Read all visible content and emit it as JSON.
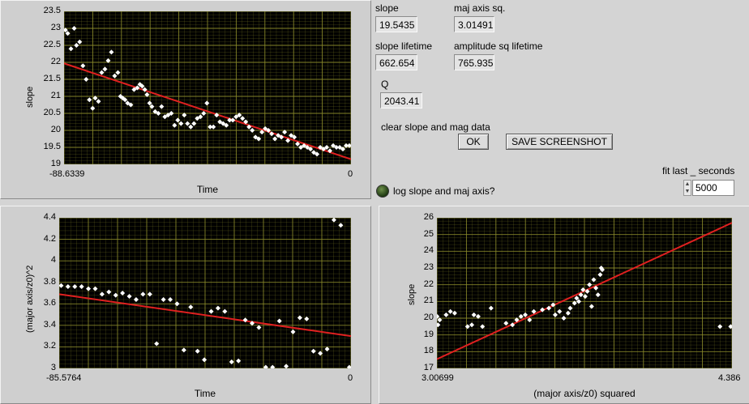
{
  "indicators": {
    "slope_label": "slope",
    "slope_value": "19.5435",
    "maj_axis_label": "maj axis sq.",
    "maj_axis_value": "3.01491",
    "slope_lifetime_label": "slope lifetime",
    "slope_lifetime_value": "662.654",
    "amp_lifetime_label": "amplitude sq lifetime",
    "amp_lifetime_value": "765.935",
    "q_label": "Q",
    "q_value": "2043.41"
  },
  "controls": {
    "clear_label": "clear slope and mag data",
    "ok_label": "OK",
    "save_label": "SAVE SCREENSHOT",
    "log_label": "log slope and maj axis?",
    "fit_label": "fit last _ seconds",
    "fit_value": "5000"
  },
  "colors": {
    "plot_bg": "#000000",
    "grid": "#8a8a2a",
    "point": "#ffffff",
    "fit_line": "#e02020"
  },
  "chart_data": [
    {
      "type": "scatter",
      "title": "",
      "xlabel": "Time",
      "ylabel": "slope",
      "xlim": [
        -88.6339,
        0
      ],
      "ylim": [
        19,
        23.5
      ],
      "x_tick_labels": [
        "-88.6339",
        "0"
      ],
      "y_tick_labels": [
        "23.5",
        "23",
        "22.5",
        "22",
        "21.5",
        "21",
        "20.5",
        "20",
        "19.5",
        "19"
      ],
      "points": [
        [
          -88.2,
          22.95
        ],
        [
          -87.5,
          22.85
        ],
        [
          -86.5,
          22.4
        ],
        [
          -85.5,
          23.0
        ],
        [
          -84.8,
          22.5
        ],
        [
          -83.8,
          22.6
        ],
        [
          -82.8,
          21.9
        ],
        [
          -81.8,
          21.5
        ],
        [
          -80.8,
          20.9
        ],
        [
          -79.8,
          20.65
        ],
        [
          -79.0,
          20.95
        ],
        [
          -78.0,
          20.85
        ],
        [
          -77.0,
          21.7
        ],
        [
          -76.0,
          21.8
        ],
        [
          -75.0,
          22.05
        ],
        [
          -74.0,
          22.3
        ],
        [
          -73.0,
          21.6
        ],
        [
          -72.0,
          21.7
        ],
        [
          -71.2,
          21.0
        ],
        [
          -70.5,
          20.95
        ],
        [
          -69.8,
          20.9
        ],
        [
          -69.0,
          20.8
        ],
        [
          -68.0,
          20.75
        ],
        [
          -67.0,
          21.2
        ],
        [
          -66.0,
          21.25
        ],
        [
          -65.2,
          21.35
        ],
        [
          -64.5,
          21.3
        ],
        [
          -63.7,
          21.2
        ],
        [
          -63.0,
          21.05
        ],
        [
          -62.2,
          20.8
        ],
        [
          -61.5,
          20.7
        ],
        [
          -60.5,
          20.55
        ],
        [
          -59.5,
          20.5
        ],
        [
          -58.5,
          20.7
        ],
        [
          -57.5,
          20.4
        ],
        [
          -56.5,
          20.45
        ],
        [
          -55.5,
          20.5
        ],
        [
          -54.5,
          20.15
        ],
        [
          -53.5,
          20.3
        ],
        [
          -52.5,
          20.2
        ],
        [
          -51.5,
          20.45
        ],
        [
          -50.5,
          20.2
        ],
        [
          -49.5,
          20.1
        ],
        [
          -48.5,
          20.2
        ],
        [
          -47.5,
          20.35
        ],
        [
          -46.5,
          20.4
        ],
        [
          -45.5,
          20.5
        ],
        [
          -44.5,
          20.8
        ],
        [
          -43.5,
          20.1
        ],
        [
          -42.5,
          20.1
        ],
        [
          -41.5,
          20.45
        ],
        [
          -40.5,
          20.25
        ],
        [
          -39.5,
          20.2
        ],
        [
          -38.5,
          20.15
        ],
        [
          -37.5,
          20.3
        ],
        [
          -36.5,
          20.3
        ],
        [
          -35.5,
          20.4
        ],
        [
          -34.5,
          20.45
        ],
        [
          -33.5,
          20.35
        ],
        [
          -32.5,
          20.25
        ],
        [
          -31.5,
          20.1
        ],
        [
          -30.5,
          20.0
        ],
        [
          -29.5,
          19.8
        ],
        [
          -28.5,
          19.75
        ],
        [
          -27.5,
          19.95
        ],
        [
          -26.5,
          20.05
        ],
        [
          -25.5,
          20.0
        ],
        [
          -24.5,
          19.9
        ],
        [
          -23.5,
          19.75
        ],
        [
          -22.5,
          19.85
        ],
        [
          -21.5,
          19.8
        ],
        [
          -20.5,
          19.95
        ],
        [
          -19.5,
          19.7
        ],
        [
          -18.5,
          19.85
        ],
        [
          -17.5,
          19.8
        ],
        [
          -16.5,
          19.6
        ],
        [
          -15.5,
          19.5
        ],
        [
          -14.5,
          19.55
        ],
        [
          -13.5,
          19.5
        ],
        [
          -12.5,
          19.45
        ],
        [
          -11.5,
          19.35
        ],
        [
          -10.5,
          19.3
        ],
        [
          -9.5,
          19.5
        ],
        [
          -8.5,
          19.45
        ],
        [
          -7.5,
          19.5
        ],
        [
          -6.5,
          19.4
        ],
        [
          -5.5,
          19.55
        ],
        [
          -4.5,
          19.5
        ],
        [
          -3.5,
          19.5
        ],
        [
          -2.5,
          19.45
        ],
        [
          -1.5,
          19.55
        ],
        [
          -0.5,
          19.55
        ]
      ],
      "fit": [
        [
          -88.6339,
          21.97
        ],
        [
          0,
          19.15
        ]
      ]
    },
    {
      "type": "scatter",
      "title": "",
      "xlabel": "Time",
      "ylabel": "(major axis/z0)^2",
      "xlim": [
        -85.5764,
        0
      ],
      "ylim": [
        3,
        4.4
      ],
      "x_tick_labels": [
        "-85.5764",
        "0"
      ],
      "y_tick_labels": [
        "4.4",
        "4.2",
        "4",
        "3.8",
        "3.6",
        "3.4",
        "3.2",
        "3"
      ],
      "points": [
        [
          -85.0,
          3.77
        ],
        [
          -83.0,
          3.76
        ],
        [
          -81.0,
          3.76
        ],
        [
          -79.0,
          3.76
        ],
        [
          -77.0,
          3.74
        ],
        [
          -75.0,
          3.74
        ],
        [
          -73.0,
          3.69
        ],
        [
          -71.0,
          3.71
        ],
        [
          -69.0,
          3.68
        ],
        [
          -67.0,
          3.7
        ],
        [
          -65.0,
          3.67
        ],
        [
          -63.0,
          3.64
        ],
        [
          -61.0,
          3.69
        ],
        [
          -59.0,
          3.69
        ],
        [
          -57.0,
          3.23
        ],
        [
          -55.0,
          3.64
        ],
        [
          -53.0,
          3.64
        ],
        [
          -51.0,
          3.6
        ],
        [
          -49.0,
          3.17
        ],
        [
          -47.0,
          3.57
        ],
        [
          -45.0,
          3.16
        ],
        [
          -43.0,
          3.08
        ],
        [
          -41.0,
          3.53
        ],
        [
          -39.0,
          3.56
        ],
        [
          -37.0,
          3.53
        ],
        [
          -35.0,
          3.06
        ],
        [
          -33.0,
          3.07
        ],
        [
          -31.0,
          3.45
        ],
        [
          -29.0,
          3.42
        ],
        [
          -27.0,
          3.38
        ],
        [
          -25.0,
          3.01
        ],
        [
          -23.0,
          3.01
        ],
        [
          -21.0,
          3.44
        ],
        [
          -19.0,
          3.02
        ],
        [
          -17.0,
          3.34
        ],
        [
          -15.0,
          3.47
        ],
        [
          -13.0,
          3.46
        ],
        [
          -11.0,
          3.16
        ],
        [
          -9.0,
          3.14
        ],
        [
          -7.0,
          3.18
        ],
        [
          -5.0,
          4.38
        ],
        [
          -3.0,
          4.33
        ],
        [
          -0.5,
          3.01
        ]
      ],
      "fit": [
        [
          -85.5764,
          3.69
        ],
        [
          0,
          3.3
        ]
      ]
    },
    {
      "type": "scatter",
      "title": "",
      "xlabel": "(major axis/z0) squared",
      "ylabel": "slope",
      "xlim": [
        3.00699,
        4.386
      ],
      "ylim": [
        17,
        26
      ],
      "x_tick_labels": [
        "3.00699",
        "4.386"
      ],
      "y_tick_labels": [
        "26",
        "25",
        "24",
        "23",
        "22",
        "21",
        "20",
        "19",
        "18",
        "17"
      ],
      "points": [
        [
          3.008,
          20.1
        ],
        [
          3.012,
          19.6
        ],
        [
          3.02,
          19.9
        ],
        [
          3.05,
          20.2
        ],
        [
          3.07,
          20.4
        ],
        [
          3.09,
          20.3
        ],
        [
          3.15,
          19.5
        ],
        [
          3.17,
          19.6
        ],
        [
          3.18,
          20.2
        ],
        [
          3.2,
          20.1
        ],
        [
          3.22,
          19.5
        ],
        [
          3.26,
          20.6
        ],
        [
          3.33,
          19.7
        ],
        [
          3.36,
          19.6
        ],
        [
          3.38,
          19.9
        ],
        [
          3.4,
          20.1
        ],
        [
          3.42,
          20.2
        ],
        [
          3.44,
          19.9
        ],
        [
          3.46,
          20.4
        ],
        [
          3.5,
          20.5
        ],
        [
          3.53,
          20.6
        ],
        [
          3.55,
          20.8
        ],
        [
          3.56,
          20.2
        ],
        [
          3.58,
          20.4
        ],
        [
          3.6,
          20.0
        ],
        [
          3.62,
          20.3
        ],
        [
          3.63,
          20.6
        ],
        [
          3.65,
          20.9
        ],
        [
          3.66,
          21.2
        ],
        [
          3.67,
          21.0
        ],
        [
          3.68,
          21.4
        ],
        [
          3.69,
          21.7
        ],
        [
          3.7,
          21.3
        ],
        [
          3.71,
          21.6
        ],
        [
          3.72,
          22.0
        ],
        [
          3.73,
          20.7
        ],
        [
          3.74,
          22.3
        ],
        [
          3.75,
          21.8
        ],
        [
          3.76,
          21.4
        ],
        [
          3.77,
          22.6
        ],
        [
          3.775,
          23.0
        ],
        [
          3.78,
          22.9
        ],
        [
          4.33,
          19.5
        ],
        [
          4.38,
          19.5
        ]
      ],
      "fit": [
        [
          3.00699,
          17.55
        ],
        [
          4.386,
          25.7
        ]
      ]
    }
  ]
}
